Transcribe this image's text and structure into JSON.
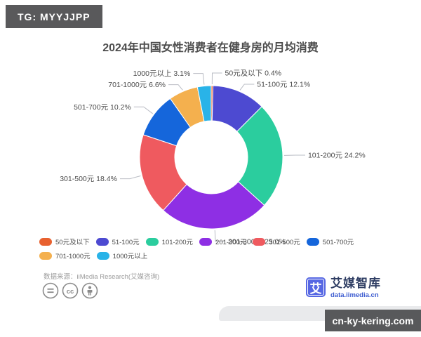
{
  "overlays": {
    "top_badge": "TG: MYYJJPP",
    "bottom_badge": "cn-ky-kering.com"
  },
  "chart_data": {
    "type": "pie",
    "subtype": "donut",
    "title": "2024年中国女性消费者在健身房的月均消费",
    "categories": [
      "50元及以下",
      "51-100元",
      "101-200元",
      "201-300元",
      "301-500元",
      "501-700元",
      "701-1000元",
      "1000元以上"
    ],
    "values": [
      0.4,
      12.1,
      24.2,
      25.0,
      18.4,
      10.2,
      6.6,
      3.1
    ],
    "colors": [
      "#E8612F",
      "#4D4AD1",
      "#2BCD9E",
      "#8E2FE4",
      "#EF5A5F",
      "#1566DB",
      "#F4B04E",
      "#29B3E8"
    ],
    "unit": "%",
    "label_format": "{name} {value}%",
    "start_angle_deg_from_top": 0,
    "direction": "clockwise",
    "legend_position": "bottom-left",
    "grid": false
  },
  "source_note": "数据来源：iiMedia Research(艾媒咨询)",
  "license_icons": [
    "equals-icon",
    "cc-icon",
    "person-icon"
  ],
  "logo": {
    "icon_char": "艾",
    "name": "艾媒智库",
    "domain": "data.iimedia.cn"
  }
}
